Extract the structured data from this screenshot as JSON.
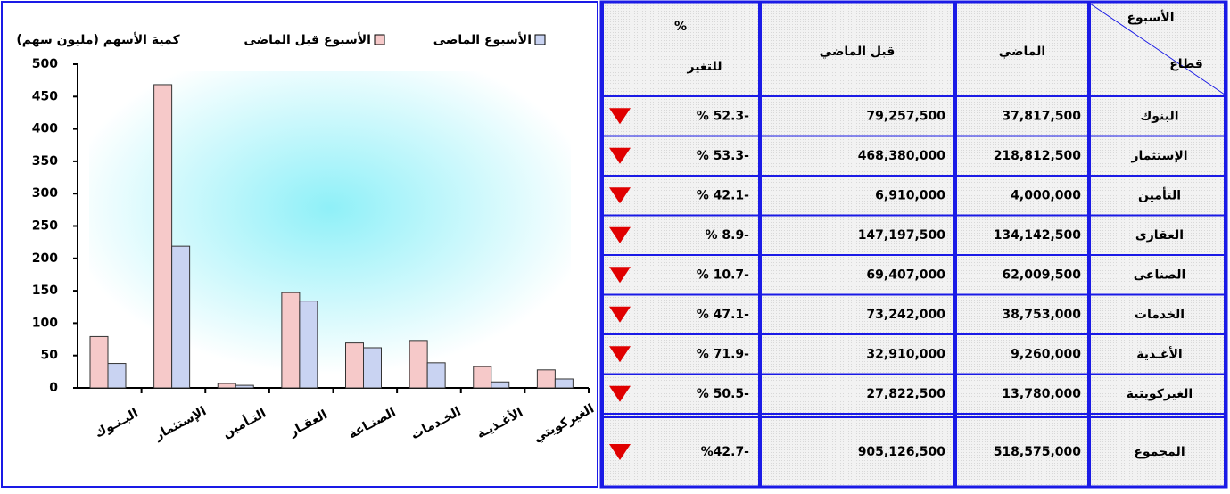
{
  "chart_data": {
    "type": "bar",
    "y_label": "كمية الأسهم (مليون سهم)",
    "categories": [
      "البـنـوك",
      "الإستثمار",
      "التـأمين",
      "العقـار",
      "الصنـاعة",
      "الخـدمات",
      "الأغـذيـة",
      "الغيركويتي"
    ],
    "series": [
      {
        "name": "الأسبوع قبل الماضى",
        "color": "#f6c9c9",
        "values": [
          79.3,
          468.4,
          6.9,
          147.2,
          69.4,
          73.2,
          32.9,
          27.8
        ]
      },
      {
        "name": "الأسبوع الماضى",
        "color": "#c9d3f2",
        "values": [
          37.8,
          218.8,
          4.0,
          134.1,
          62.0,
          38.8,
          9.3,
          13.8
        ]
      }
    ],
    "ylim": [
      0,
      500
    ],
    "yticks": [
      0,
      50,
      100,
      150,
      200,
      250,
      300,
      350,
      400,
      450,
      500
    ]
  },
  "table": {
    "corner": [
      "الأسبوع",
      "قطاع"
    ],
    "columns": [
      "الماضي",
      "قبل الماضي"
    ],
    "change_header": [
      "%",
      "للتغير"
    ],
    "rows": [
      [
        "البنوك",
        "37,817,500",
        "79,257,500",
        "% 52.3-"
      ],
      [
        "الإستثمار",
        "218,812,500",
        "468,380,000",
        "% 53.3-"
      ],
      [
        "التأمين",
        "4,000,000",
        "6,910,000",
        "% 42.1-"
      ],
      [
        "العقارى",
        "134,142,500",
        "147,197,500",
        "% 8.9-"
      ],
      [
        "الصناعى",
        "62,009,500",
        "69,407,000",
        "% 10.7-"
      ],
      [
        "الخدمات",
        "38,753,000",
        "73,242,000",
        "% 47.1-"
      ],
      [
        "الأغـذية",
        "9,260,000",
        "32,910,000",
        "% 71.9-"
      ],
      [
        "الغيركويتية",
        "13,780,000",
        "27,822,500",
        "% 50.5-"
      ]
    ],
    "total": [
      "المجموع",
      "518,575,000",
      "905,126,500",
      "%42.7-"
    ]
  }
}
